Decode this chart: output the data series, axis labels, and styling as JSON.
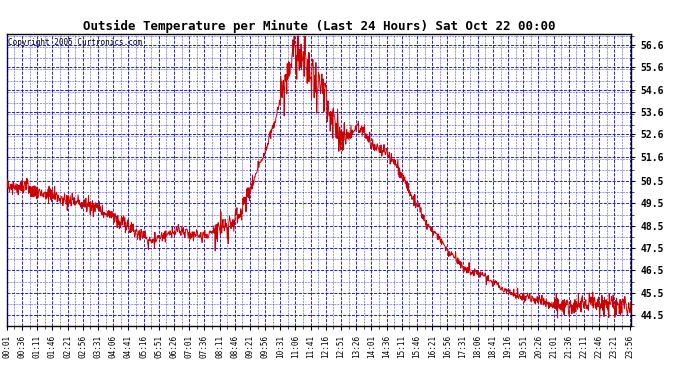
{
  "title": "Outside Temperature per Minute (Last 24 Hours) Sat Oct 22 00:00",
  "copyright": "Copyright 2005 Curtronics.com",
  "ylabel_right_ticks": [
    44.5,
    45.5,
    46.5,
    47.5,
    48.5,
    49.5,
    50.5,
    51.6,
    52.6,
    53.6,
    54.6,
    55.6,
    56.6
  ],
  "ymin": 44.0,
  "ymax": 57.1,
  "line_color": "#cc0000",
  "grid_color": "#0000cc",
  "background_color": "#ffffff",
  "plot_bg_color": "#ffffff",
  "x_labels": [
    "00:01",
    "00:36",
    "01:11",
    "01:46",
    "02:21",
    "02:56",
    "03:31",
    "04:06",
    "04:41",
    "05:16",
    "05:51",
    "06:26",
    "07:01",
    "07:36",
    "08:11",
    "08:46",
    "09:21",
    "09:56",
    "10:31",
    "11:06",
    "11:41",
    "12:16",
    "12:51",
    "13:26",
    "14:01",
    "14:36",
    "15:11",
    "15:46",
    "16:21",
    "16:56",
    "17:31",
    "18:06",
    "18:41",
    "19:16",
    "19:51",
    "20:26",
    "21:01",
    "21:36",
    "22:11",
    "22:46",
    "23:21",
    "23:56"
  ],
  "figwidth": 6.9,
  "figheight": 3.75,
  "dpi": 100
}
